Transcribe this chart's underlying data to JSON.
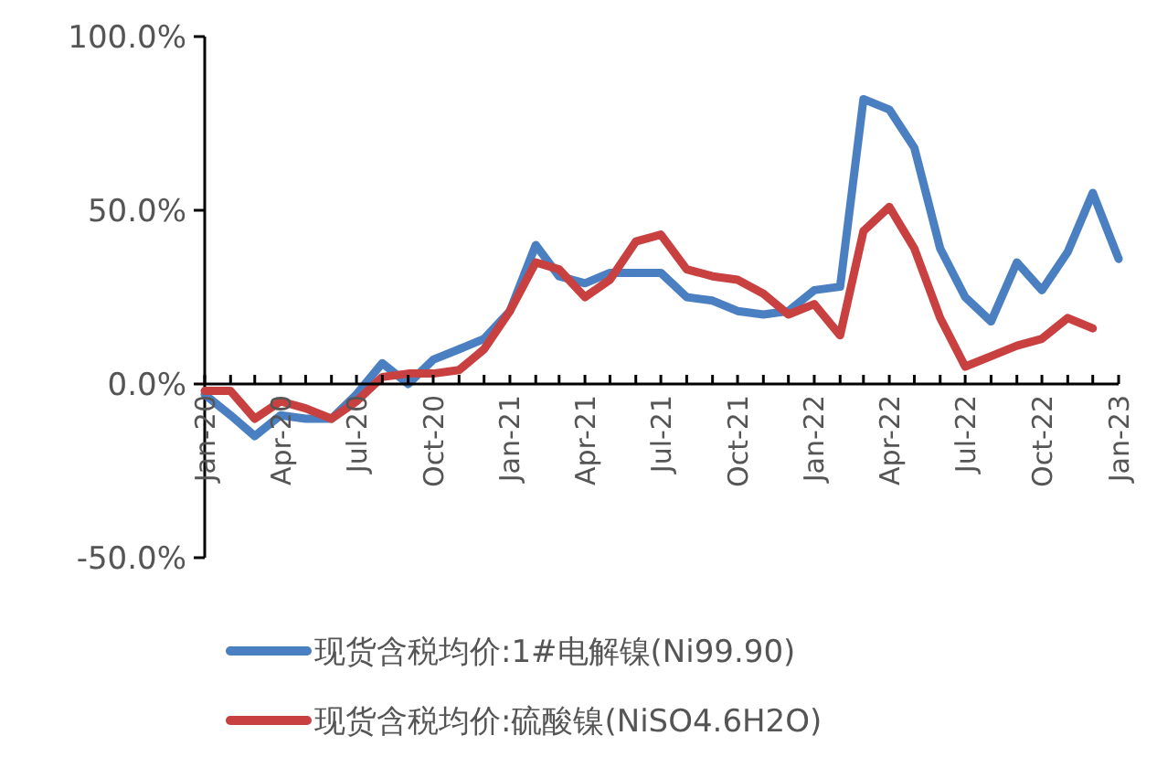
{
  "chart_data": {
    "type": "line",
    "x": [
      "2020-01",
      "2020-02",
      "2020-03",
      "2020-04",
      "2020-05",
      "2020-06",
      "2020-07",
      "2020-08",
      "2020-09",
      "2020-10",
      "2020-11",
      "2020-12",
      "2021-01",
      "2021-02",
      "2021-03",
      "2021-04",
      "2021-05",
      "2021-06",
      "2021-07",
      "2021-08",
      "2021-09",
      "2021-10",
      "2021-11",
      "2021-12",
      "2022-01",
      "2022-02",
      "2022-03",
      "2022-04",
      "2022-05",
      "2022-06",
      "2022-07",
      "2022-08",
      "2022-09",
      "2022-10",
      "2022-11",
      "2022-12",
      "2023-01"
    ],
    "series": [
      {
        "name": "现货含税均价:1#电解镍(Ni99.90)",
        "color": "#4a7fc1",
        "values": [
          -3,
          -9,
          -15,
          -9,
          -10,
          -10,
          -3,
          6,
          0,
          7,
          10,
          13,
          21,
          40,
          31,
          29,
          32,
          32,
          32,
          25,
          24,
          21,
          20,
          21,
          27,
          28,
          82,
          79,
          68,
          39,
          25,
          18,
          35,
          27,
          38,
          55,
          36
        ]
      },
      {
        "name": "现货含税均价:硫酸镍(NiSO4.6H2O)",
        "color": "#c94040",
        "values": [
          -2,
          -2,
          -10,
          -5,
          -7,
          -10,
          -5,
          2,
          3,
          3,
          4,
          10,
          21,
          35,
          33,
          25,
          30,
          41,
          43,
          33,
          31,
          30,
          26,
          20,
          23,
          14,
          44,
          51,
          39,
          19,
          5,
          8,
          11,
          13,
          19,
          16,
          null
        ]
      }
    ],
    "xlim": [
      "2020-01",
      "2023-01"
    ],
    "xticks": [
      {
        "value": "2020-01",
        "label": "Jan-20"
      },
      {
        "value": "2020-02",
        "label": null
      },
      {
        "value": "2020-03",
        "label": null
      },
      {
        "value": "2020-04",
        "label": "Apr-20"
      },
      {
        "value": "2020-05",
        "label": null
      },
      {
        "value": "2020-06",
        "label": null
      },
      {
        "value": "2020-07",
        "label": "Jul-20"
      },
      {
        "value": "2020-08",
        "label": null
      },
      {
        "value": "2020-09",
        "label": null
      },
      {
        "value": "2020-10",
        "label": "Oct-20"
      },
      {
        "value": "2020-11",
        "label": null
      },
      {
        "value": "2020-12",
        "label": null
      },
      {
        "value": "2021-01",
        "label": "Jan-21"
      },
      {
        "value": "2021-02",
        "label": null
      },
      {
        "value": "2021-03",
        "label": null
      },
      {
        "value": "2021-04",
        "label": "Apr-21"
      },
      {
        "value": "2021-05",
        "label": null
      },
      {
        "value": "2021-06",
        "label": null
      },
      {
        "value": "2021-07",
        "label": "Jul-21"
      },
      {
        "value": "2021-08",
        "label": null
      },
      {
        "value": "2021-09",
        "label": null
      },
      {
        "value": "2021-10",
        "label": "Oct-21"
      },
      {
        "value": "2021-11",
        "label": null
      },
      {
        "value": "2021-12",
        "label": null
      },
      {
        "value": "2022-01",
        "label": "Jan-22"
      },
      {
        "value": "2022-02",
        "label": null
      },
      {
        "value": "2022-03",
        "label": null
      },
      {
        "value": "2022-04",
        "label": "Apr-22"
      },
      {
        "value": "2022-05",
        "label": null
      },
      {
        "value": "2022-06",
        "label": null
      },
      {
        "value": "2022-07",
        "label": "Jul-22"
      },
      {
        "value": "2022-08",
        "label": null
      },
      {
        "value": "2022-09",
        "label": null
      },
      {
        "value": "2022-10",
        "label": "Oct-22"
      },
      {
        "value": "2022-11",
        "label": null
      },
      {
        "value": "2022-12",
        "label": null
      },
      {
        "value": "2023-01",
        "label": "Jan-23"
      }
    ],
    "ylim": [
      -50,
      100
    ],
    "yticks": [
      {
        "value": -50,
        "label": "-50.0%"
      },
      {
        "value": 0,
        "label": "0.0%"
      },
      {
        "value": 50,
        "label": "50.0%"
      },
      {
        "value": 100,
        "label": "100.0%"
      }
    ],
    "grid": false,
    "legend": "bottom",
    "marker": "none",
    "line_style": "solid"
  }
}
